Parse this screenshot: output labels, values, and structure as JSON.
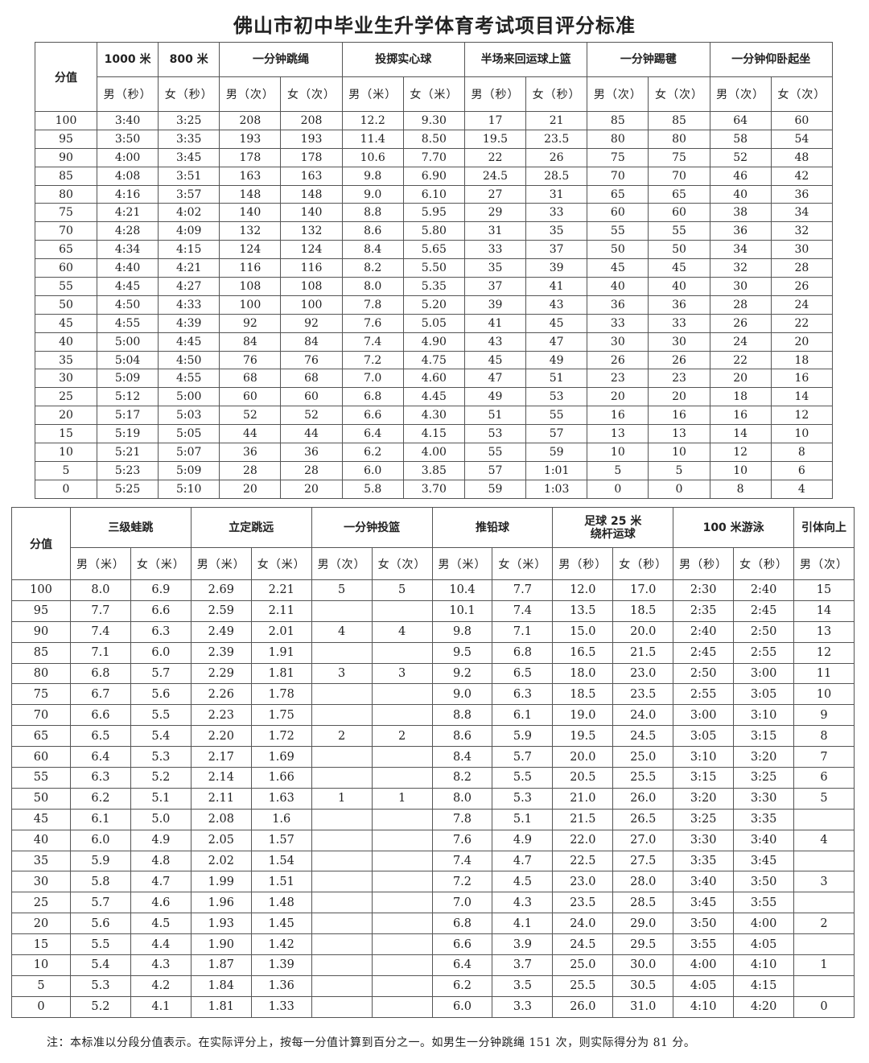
{
  "title": "佛山市初中毕业生升学体育考试项目评分标准",
  "table1": {
    "score_header": "分值",
    "groups": [
      {
        "label": "1000 米",
        "subs": [
          "男（秒）"
        ]
      },
      {
        "label": "800 米",
        "subs": [
          "女（秒）"
        ]
      },
      {
        "label": "一分钟跳绳",
        "subs": [
          "男（次）",
          "女（次）"
        ]
      },
      {
        "label": "投掷实心球",
        "subs": [
          "男（米）",
          "女（米）"
        ]
      },
      {
        "label": "半场来回运球上篮",
        "subs": [
          "男（秒）",
          "女（秒）"
        ]
      },
      {
        "label": "一分钟踢毽",
        "subs": [
          "男（次）",
          "女（次）"
        ]
      },
      {
        "label": "一分钟仰卧起坐",
        "subs": [
          "男（次）",
          "女（次）"
        ]
      }
    ],
    "rows": [
      [
        "100",
        "3:40",
        "3:25",
        "208",
        "208",
        "12.2",
        "9.30",
        "17",
        "21",
        "85",
        "85",
        "64",
        "60"
      ],
      [
        "95",
        "3:50",
        "3:35",
        "193",
        "193",
        "11.4",
        "8.50",
        "19.5",
        "23.5",
        "80",
        "80",
        "58",
        "54"
      ],
      [
        "90",
        "4:00",
        "3:45",
        "178",
        "178",
        "10.6",
        "7.70",
        "22",
        "26",
        "75",
        "75",
        "52",
        "48"
      ],
      [
        "85",
        "4:08",
        "3:51",
        "163",
        "163",
        "9.8",
        "6.90",
        "24.5",
        "28.5",
        "70",
        "70",
        "46",
        "42"
      ],
      [
        "80",
        "4:16",
        "3:57",
        "148",
        "148",
        "9.0",
        "6.10",
        "27",
        "31",
        "65",
        "65",
        "40",
        "36"
      ],
      [
        "75",
        "4:21",
        "4:02",
        "140",
        "140",
        "8.8",
        "5.95",
        "29",
        "33",
        "60",
        "60",
        "38",
        "34"
      ],
      [
        "70",
        "4:28",
        "4:09",
        "132",
        "132",
        "8.6",
        "5.80",
        "31",
        "35",
        "55",
        "55",
        "36",
        "32"
      ],
      [
        "65",
        "4:34",
        "4:15",
        "124",
        "124",
        "8.4",
        "5.65",
        "33",
        "37",
        "50",
        "50",
        "34",
        "30"
      ],
      [
        "60",
        "4:40",
        "4:21",
        "116",
        "116",
        "8.2",
        "5.50",
        "35",
        "39",
        "45",
        "45",
        "32",
        "28"
      ],
      [
        "55",
        "4:45",
        "4:27",
        "108",
        "108",
        "8.0",
        "5.35",
        "37",
        "41",
        "40",
        "40",
        "30",
        "26"
      ],
      [
        "50",
        "4:50",
        "4:33",
        "100",
        "100",
        "7.8",
        "5.20",
        "39",
        "43",
        "36",
        "36",
        "28",
        "24"
      ],
      [
        "45",
        "4:55",
        "4:39",
        "92",
        "92",
        "7.6",
        "5.05",
        "41",
        "45",
        "33",
        "33",
        "26",
        "22"
      ],
      [
        "40",
        "5:00",
        "4:45",
        "84",
        "84",
        "7.4",
        "4.90",
        "43",
        "47",
        "30",
        "30",
        "24",
        "20"
      ],
      [
        "35",
        "5:04",
        "4:50",
        "76",
        "76",
        "7.2",
        "4.75",
        "45",
        "49",
        "26",
        "26",
        "22",
        "18"
      ],
      [
        "30",
        "5:09",
        "4:55",
        "68",
        "68",
        "7.0",
        "4.60",
        "47",
        "51",
        "23",
        "23",
        "20",
        "16"
      ],
      [
        "25",
        "5:12",
        "5:00",
        "60",
        "60",
        "6.8",
        "4.45",
        "49",
        "53",
        "20",
        "20",
        "18",
        "14"
      ],
      [
        "20",
        "5:17",
        "5:03",
        "52",
        "52",
        "6.6",
        "4.30",
        "51",
        "55",
        "16",
        "16",
        "16",
        "12"
      ],
      [
        "15",
        "5:19",
        "5:05",
        "44",
        "44",
        "6.4",
        "4.15",
        "53",
        "57",
        "13",
        "13",
        "14",
        "10"
      ],
      [
        "10",
        "5:21",
        "5:07",
        "36",
        "36",
        "6.2",
        "4.00",
        "55",
        "59",
        "10",
        "10",
        "12",
        "8"
      ],
      [
        "5",
        "5:23",
        "5:09",
        "28",
        "28",
        "6.0",
        "3.85",
        "57",
        "1:01",
        "5",
        "5",
        "10",
        "6"
      ],
      [
        "0",
        "5:25",
        "5:10",
        "20",
        "20",
        "5.8",
        "3.70",
        "59",
        "1:03",
        "0",
        "0",
        "8",
        "4"
      ]
    ]
  },
  "table2": {
    "score_header": "分值",
    "groups": [
      {
        "label": "三级蛙跳",
        "subs": [
          "男（米）",
          "女（米）"
        ]
      },
      {
        "label": "立定跳远",
        "subs": [
          "男（米）",
          "女（米）"
        ]
      },
      {
        "label": "一分钟投篮",
        "subs": [
          "男（次）",
          "女（次）"
        ]
      },
      {
        "label": "推铅球",
        "subs": [
          "男（米）",
          "女（米）"
        ]
      },
      {
        "label": "足球 25 米\n绕杆运球",
        "subs": [
          "男（秒）",
          "女（秒）"
        ]
      },
      {
        "label": "100 米游泳",
        "subs": [
          "男（秒）",
          "女（秒）"
        ]
      },
      {
        "label": "引体向上",
        "subs": [
          "男（次）"
        ]
      }
    ],
    "rows": [
      [
        "100",
        "8.0",
        "6.9",
        "2.69",
        "2.21",
        "5",
        "5",
        "10.4",
        "7.7",
        "12.0",
        "17.0",
        "2:30",
        "2:40",
        "15"
      ],
      [
        "95",
        "7.7",
        "6.6",
        "2.59",
        "2.11",
        "",
        "",
        "10.1",
        "7.4",
        "13.5",
        "18.5",
        "2:35",
        "2:45",
        "14"
      ],
      [
        "90",
        "7.4",
        "6.3",
        "2.49",
        "2.01",
        "4",
        "4",
        "9.8",
        "7.1",
        "15.0",
        "20.0",
        "2:40",
        "2:50",
        "13"
      ],
      [
        "85",
        "7.1",
        "6.0",
        "2.39",
        "1.91",
        "",
        "",
        "9.5",
        "6.8",
        "16.5",
        "21.5",
        "2:45",
        "2:55",
        "12"
      ],
      [
        "80",
        "6.8",
        "5.7",
        "2.29",
        "1.81",
        "3",
        "3",
        "9.2",
        "6.5",
        "18.0",
        "23.0",
        "2:50",
        "3:00",
        "11"
      ],
      [
        "75",
        "6.7",
        "5.6",
        "2.26",
        "1.78",
        "",
        "",
        "9.0",
        "6.3",
        "18.5",
        "23.5",
        "2:55",
        "3:05",
        "10"
      ],
      [
        "70",
        "6.6",
        "5.5",
        "2.23",
        "1.75",
        "",
        "",
        "8.8",
        "6.1",
        "19.0",
        "24.0",
        "3:00",
        "3:10",
        "9"
      ],
      [
        "65",
        "6.5",
        "5.4",
        "2.20",
        "1.72",
        "2",
        "2",
        "8.6",
        "5.9",
        "19.5",
        "24.5",
        "3:05",
        "3:15",
        "8"
      ],
      [
        "60",
        "6.4",
        "5.3",
        "2.17",
        "1.69",
        "",
        "",
        "8.4",
        "5.7",
        "20.0",
        "25.0",
        "3:10",
        "3:20",
        "7"
      ],
      [
        "55",
        "6.3",
        "5.2",
        "2.14",
        "1.66",
        "",
        "",
        "8.2",
        "5.5",
        "20.5",
        "25.5",
        "3:15",
        "3:25",
        "6"
      ],
      [
        "50",
        "6.2",
        "5.1",
        "2.11",
        "1.63",
        "1",
        "1",
        "8.0",
        "5.3",
        "21.0",
        "26.0",
        "3:20",
        "3:30",
        "5"
      ],
      [
        "45",
        "6.1",
        "5.0",
        "2.08",
        "1.6",
        "",
        "",
        "7.8",
        "5.1",
        "21.5",
        "26.5",
        "3:25",
        "3:35",
        ""
      ],
      [
        "40",
        "6.0",
        "4.9",
        "2.05",
        "1.57",
        "",
        "",
        "7.6",
        "4.9",
        "22.0",
        "27.0",
        "3:30",
        "3:40",
        "4"
      ],
      [
        "35",
        "5.9",
        "4.8",
        "2.02",
        "1.54",
        "",
        "",
        "7.4",
        "4.7",
        "22.5",
        "27.5",
        "3:35",
        "3:45",
        ""
      ],
      [
        "30",
        "5.8",
        "4.7",
        "1.99",
        "1.51",
        "",
        "",
        "7.2",
        "4.5",
        "23.0",
        "28.0",
        "3:40",
        "3:50",
        "3"
      ],
      [
        "25",
        "5.7",
        "4.6",
        "1.96",
        "1.48",
        "",
        "",
        "7.0",
        "4.3",
        "23.5",
        "28.5",
        "3:45",
        "3:55",
        ""
      ],
      [
        "20",
        "5.6",
        "4.5",
        "1.93",
        "1.45",
        "",
        "",
        "6.8",
        "4.1",
        "24.0",
        "29.0",
        "3:50",
        "4:00",
        "2"
      ],
      [
        "15",
        "5.5",
        "4.4",
        "1.90",
        "1.42",
        "",
        "",
        "6.6",
        "3.9",
        "24.5",
        "29.5",
        "3:55",
        "4:05",
        ""
      ],
      [
        "10",
        "5.4",
        "4.3",
        "1.87",
        "1.39",
        "",
        "",
        "6.4",
        "3.7",
        "25.0",
        "30.0",
        "4:00",
        "4:10",
        "1"
      ],
      [
        "5",
        "5.3",
        "4.2",
        "1.84",
        "1.36",
        "",
        "",
        "6.2",
        "3.5",
        "25.5",
        "30.5",
        "4:05",
        "4:15",
        ""
      ],
      [
        "0",
        "5.2",
        "4.1",
        "1.81",
        "1.33",
        "",
        "",
        "6.0",
        "3.3",
        "26.0",
        "31.0",
        "4:10",
        "4:20",
        "0"
      ]
    ]
  },
  "note": "注：本标准以分段分值表示。在实际评分上，按每一分值计算到百分之一。如男生一分钟跳绳 151 次，则实际得分为 81 分。"
}
